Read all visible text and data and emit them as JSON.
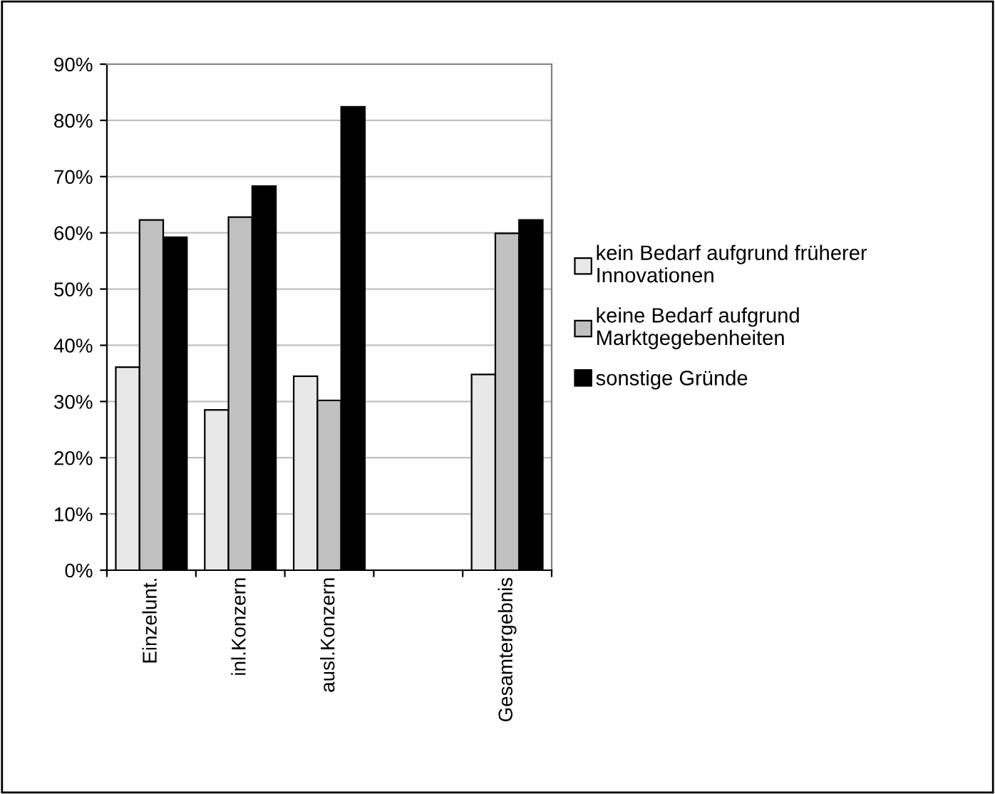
{
  "chart_data": {
    "type": "bar",
    "categories": [
      "Einzelunt.",
      "inl.Konzern",
      "ausl.Konzern",
      null,
      "Gesamtergebnis"
    ],
    "series": [
      {
        "name": "kein Bedarf aufgrund früherer\nInnovationen",
        "color": "#e8e8e8",
        "values": [
          36.1,
          28.5,
          34.5,
          null,
          34.8
        ]
      },
      {
        "name": "keine Bedarf aufgrund\nMarktgegebenheiten",
        "color": "#c0c0c0",
        "values": [
          62.3,
          62.8,
          30.2,
          null,
          59.9
        ]
      },
      {
        "name": "sonstige Gründe",
        "color": "#000000",
        "values": [
          59.2,
          68.3,
          82.4,
          null,
          62.3
        ]
      }
    ],
    "ylim": [
      0,
      90
    ],
    "yticks": [
      {
        "value": 0,
        "label": "0%"
      },
      {
        "value": 10,
        "label": "10%"
      },
      {
        "value": 20,
        "label": "20%"
      },
      {
        "value": 30,
        "label": "30%"
      },
      {
        "value": 40,
        "label": "40%"
      },
      {
        "value": 50,
        "label": "50%"
      },
      {
        "value": 60,
        "label": "60%"
      },
      {
        "value": 70,
        "label": "70%"
      },
      {
        "value": 80,
        "label": "80%"
      },
      {
        "value": 90,
        "label": "90%"
      }
    ],
    "grid": "y",
    "legend": "right"
  }
}
